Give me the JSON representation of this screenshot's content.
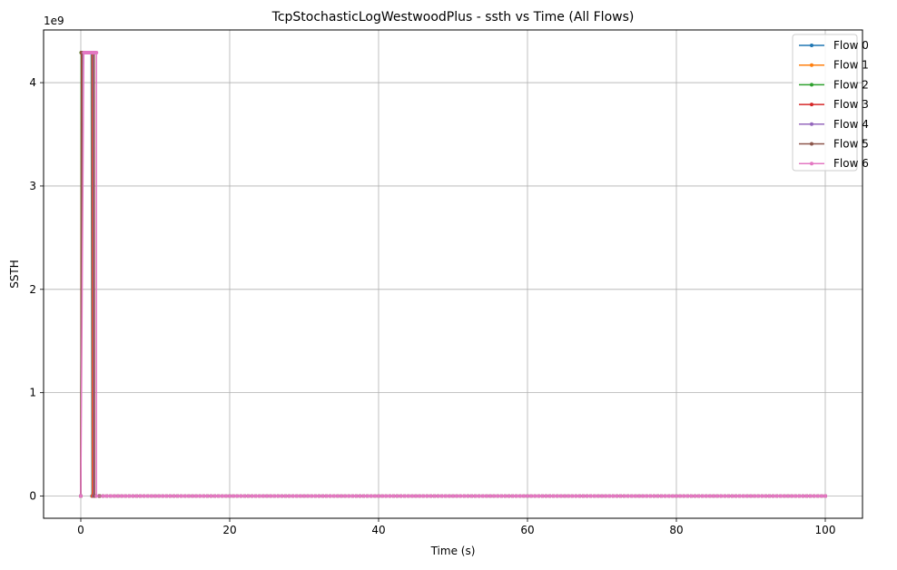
{
  "chart_data": {
    "type": "line",
    "title": "TcpStochasticLogWestwoodPlus - ssth vs Time (All Flows)",
    "xlabel": "Time (s)",
    "ylabel": "SSTH",
    "y_offset_label": "1e9",
    "xlim": [
      -5,
      105
    ],
    "ylim": [
      -0.215,
      4.51
    ],
    "y_scale_factor": 1000000000,
    "x_ticks": [
      {
        "value": 0,
        "label": "0"
      },
      {
        "value": 20,
        "label": "20"
      },
      {
        "value": 40,
        "label": "40"
      },
      {
        "value": 60,
        "label": "60"
      },
      {
        "value": 80,
        "label": "80"
      },
      {
        "value": 100,
        "label": "100"
      }
    ],
    "y_ticks": [
      {
        "value": 0,
        "label": "0"
      },
      {
        "value": 1,
        "label": "1"
      },
      {
        "value": 2,
        "label": "2"
      },
      {
        "value": 3,
        "label": "3"
      },
      {
        "value": 4,
        "label": "4"
      }
    ],
    "grid": true,
    "legend_position": "top-right",
    "series": [
      {
        "name": "Flow 0",
        "color": "#1f77b4",
        "x": [
          0,
          0.1,
          0.2,
          0.3,
          0.4,
          0.5,
          0.6,
          0.7,
          0.8,
          0.9,
          1.0,
          1.1,
          1.2,
          1.3,
          1.4,
          1.5,
          100
        ],
        "y": [
          0,
          4.29,
          4.29,
          4.29,
          4.29,
          4.29,
          4.29,
          4.29,
          4.29,
          4.29,
          4.29,
          4.29,
          4.29,
          4.29,
          4.29,
          0,
          0
        ]
      },
      {
        "name": "Flow 1",
        "color": "#ff7f0e",
        "x": [
          0,
          0.1,
          0.2,
          0.3,
          0.4,
          0.5,
          0.6,
          0.7,
          0.8,
          0.9,
          1.0,
          1.1,
          1.2,
          1.3,
          1.4,
          1.5,
          1.55,
          100
        ],
        "y": [
          0,
          4.29,
          4.29,
          4.29,
          4.29,
          4.29,
          4.29,
          4.29,
          4.29,
          4.29,
          4.29,
          4.29,
          4.29,
          4.29,
          4.29,
          4.29,
          0,
          0
        ]
      },
      {
        "name": "Flow 2",
        "color": "#2ca02c",
        "x": [
          0,
          0.05,
          0.1,
          0.2,
          0.3,
          0.4,
          0.5,
          0.6,
          0.7,
          0.8,
          0.9,
          1.0,
          1.1,
          1.2,
          1.3,
          1.4,
          1.5,
          1.6,
          1.7,
          100
        ],
        "y": [
          0,
          4.29,
          4.29,
          4.29,
          4.29,
          4.29,
          4.29,
          4.29,
          4.29,
          4.29,
          4.29,
          4.29,
          4.29,
          4.29,
          4.29,
          4.29,
          4.29,
          4.29,
          0,
          0
        ]
      },
      {
        "name": "Flow 3",
        "color": "#d62728",
        "x": [
          0,
          0.1,
          0.2,
          0.3,
          0.4,
          0.5,
          0.6,
          0.7,
          0.8,
          0.9,
          1.0,
          1.1,
          1.2,
          1.3,
          1.4,
          1.5,
          1.6,
          1.65,
          100
        ],
        "y": [
          0,
          4.29,
          4.29,
          4.29,
          4.29,
          4.29,
          4.29,
          4.29,
          4.29,
          4.29,
          4.29,
          4.29,
          4.29,
          4.29,
          4.29,
          4.29,
          4.29,
          0,
          0
        ]
      },
      {
        "name": "Flow 4",
        "color": "#9467bd",
        "x": [
          0,
          0.2,
          0.3,
          0.4,
          0.5,
          0.6,
          0.7,
          0.8,
          0.9,
          1.0,
          1.1,
          1.2,
          1.3,
          1.4,
          1.5,
          1.6,
          1.7,
          1.75,
          100
        ],
        "y": [
          0,
          4.29,
          4.29,
          4.29,
          4.29,
          4.29,
          4.29,
          4.29,
          4.29,
          4.29,
          4.29,
          4.29,
          4.29,
          4.29,
          4.29,
          4.29,
          4.29,
          0,
          0
        ]
      },
      {
        "name": "Flow 5",
        "color": "#8c564b",
        "x": [
          0,
          0.15,
          0.3,
          0.4,
          0.5,
          0.6,
          0.7,
          0.8,
          0.9,
          1.0,
          1.1,
          1.2,
          1.3,
          1.4,
          1.5,
          1.6,
          1.7,
          1.8,
          1.85,
          100
        ],
        "y": [
          0,
          4.29,
          4.29,
          4.29,
          4.29,
          4.29,
          4.29,
          4.29,
          4.29,
          4.29,
          4.29,
          4.29,
          4.29,
          4.29,
          4.29,
          4.29,
          4.29,
          4.29,
          0,
          0
        ]
      },
      {
        "name": "Flow 6",
        "color": "#e377c2",
        "x": [
          0,
          0.4,
          0.5,
          0.6,
          0.7,
          0.8,
          0.9,
          1.0,
          1.1,
          1.2,
          1.3,
          1.4,
          1.5,
          1.6,
          1.7,
          1.8,
          1.9,
          2.0,
          2.1,
          2.1,
          100
        ],
        "y": [
          0,
          4.29,
          4.29,
          4.29,
          4.29,
          4.29,
          4.29,
          4.29,
          4.29,
          4.29,
          4.29,
          4.29,
          4.29,
          4.29,
          4.29,
          4.29,
          4.29,
          4.29,
          4.29,
          0,
          0
        ]
      }
    ]
  }
}
